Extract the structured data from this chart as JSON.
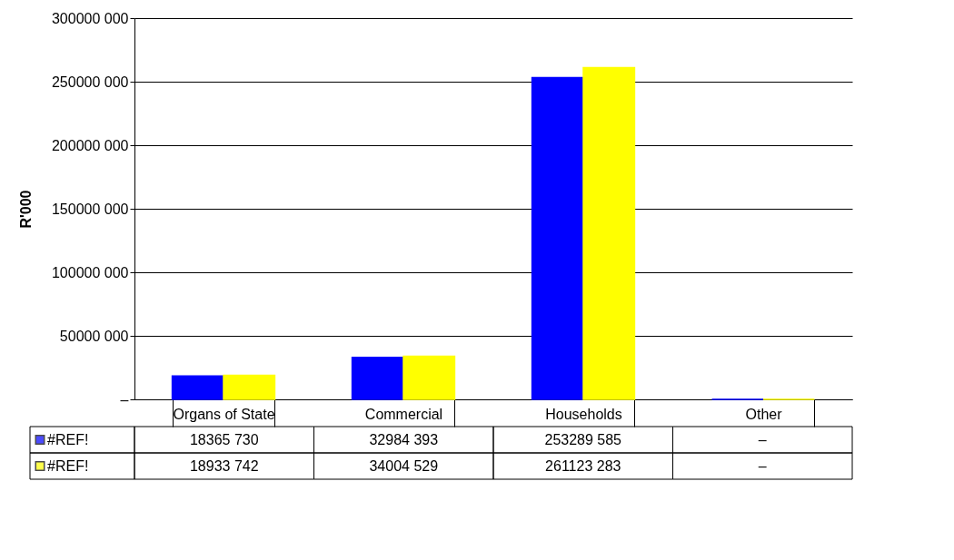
{
  "chart_data": {
    "type": "bar",
    "ylabel": "R'000",
    "categories": [
      "Organs of State",
      "Commercial",
      "Households",
      "Other"
    ],
    "series": [
      {
        "name": "#REF!",
        "color": "#0000ff",
        "values": [
          18365730,
          32984393,
          253289585,
          0
        ],
        "value_labels": [
          "18365 730",
          "32984 393",
          "253289 585",
          "–"
        ]
      },
      {
        "name": "#REF!",
        "color": "#ffff00",
        "values": [
          18933742,
          34004529,
          261123283,
          0
        ],
        "value_labels": [
          "18933 742",
          "34004 529",
          "261123 283",
          "–"
        ]
      }
    ],
    "ylim": [
      0,
      300000000
    ],
    "yticks": [
      {
        "value": 0,
        "label": "–"
      },
      {
        "value": 50000000,
        "label": "50000 000"
      },
      {
        "value": 100000000,
        "label": "100000 000"
      },
      {
        "value": 150000000,
        "label": "150000 000"
      },
      {
        "value": 200000000,
        "label": "200000 000"
      },
      {
        "value": 250000000,
        "label": "250000 000"
      },
      {
        "value": 300000000,
        "label": "300000 000"
      }
    ],
    "grid": "y",
    "legend": "bottom"
  }
}
